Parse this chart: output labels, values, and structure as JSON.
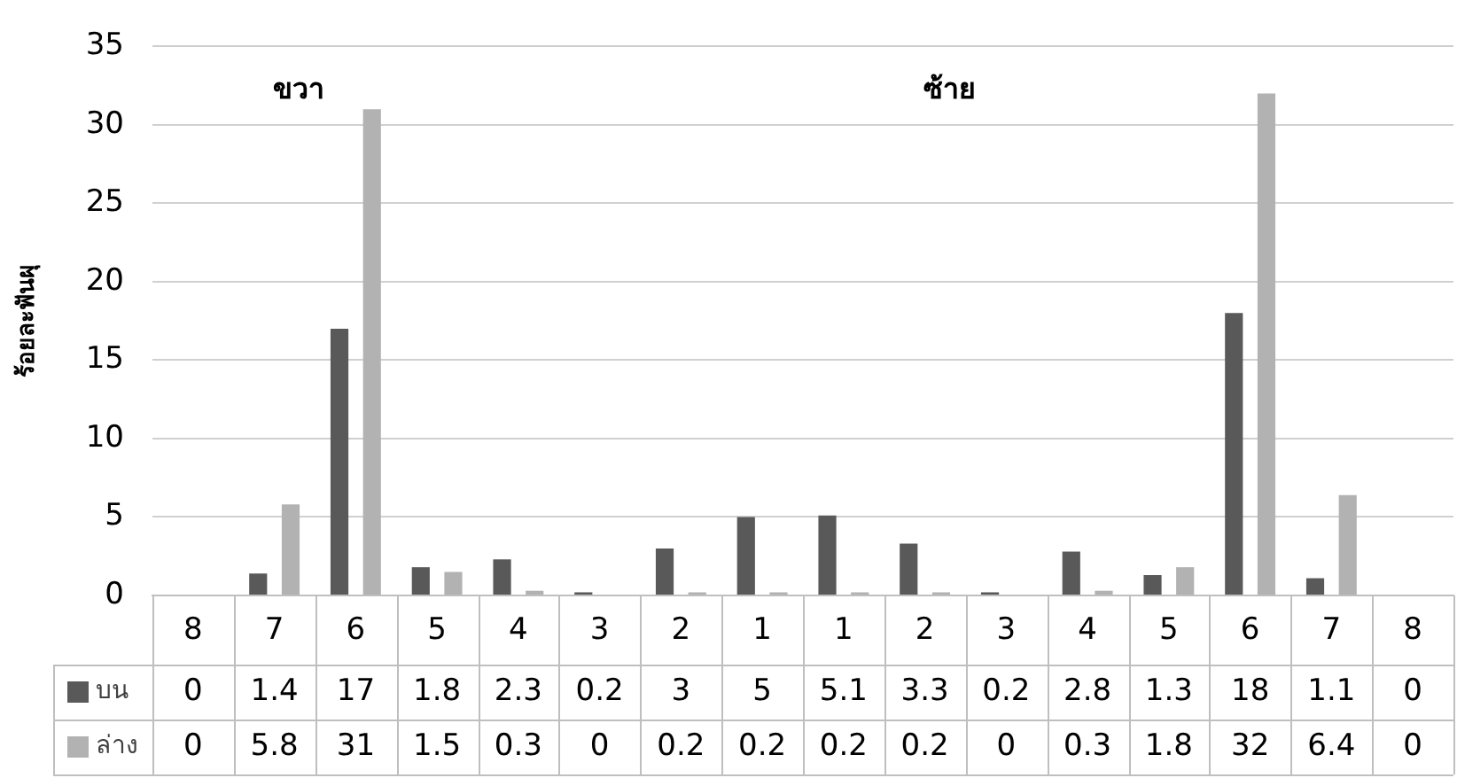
{
  "chart_data": {
    "type": "bar",
    "ylabel": "ร้อยละฟันผุ",
    "categories": [
      "8",
      "7",
      "6",
      "5",
      "4",
      "3",
      "2",
      "1",
      "1",
      "2",
      "3",
      "4",
      "5",
      "6",
      "7",
      "8"
    ],
    "series": [
      {
        "name": "บน",
        "color": "#595959",
        "values": [
          0,
          1.4,
          17,
          1.8,
          2.3,
          0.2,
          3,
          5,
          5.1,
          3.3,
          0.2,
          2.8,
          1.3,
          18,
          1.1,
          0
        ]
      },
      {
        "name": "ล่าง",
        "color": "#b2b2b2",
        "values": [
          0,
          5.8,
          31,
          1.5,
          0.3,
          0,
          0.2,
          0.2,
          0.2,
          0.2,
          0,
          0.3,
          1.8,
          32,
          6.4,
          0
        ]
      }
    ],
    "annotations": [
      "ขวา",
      "ซ้าย"
    ],
    "ylim": [
      0,
      35
    ],
    "yticks": [
      0,
      5,
      10,
      15,
      20,
      25,
      30,
      35
    ],
    "grid": "y",
    "legend": "bottom",
    "data_labels": true
  }
}
